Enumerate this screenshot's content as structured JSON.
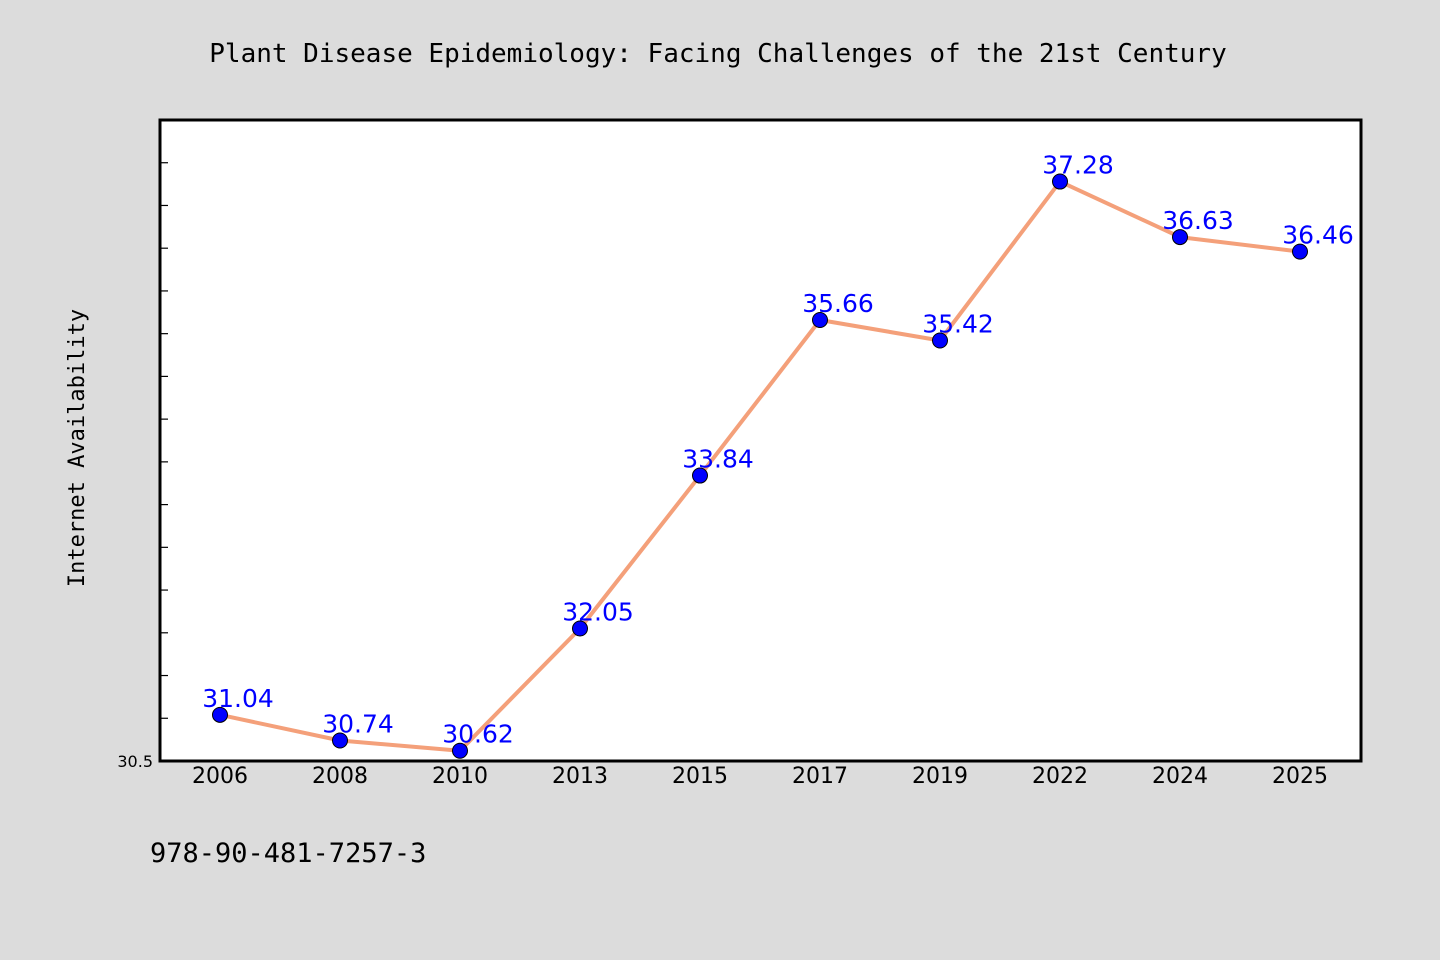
{
  "chart_data": {
    "type": "line",
    "title": "Plant Disease Epidemiology: Facing Challenges of the 21st Century",
    "xlabel": "",
    "ylabel": "Internet Availability",
    "categories": [
      "2006",
      "2008",
      "2010",
      "2013",
      "2015",
      "2017",
      "2019",
      "2022",
      "2024",
      "2025"
    ],
    "series": [
      {
        "values": [
          31.04,
          30.74,
          30.62,
          32.05,
          33.84,
          35.66,
          35.42,
          37.28,
          36.63,
          36.46
        ],
        "line_color": "#f4a07a",
        "marker_color": "#0000ff"
      }
    ],
    "data_labels": [
      "31.04",
      "30.74",
      "30.62",
      "32.05",
      "33.84",
      "35.66",
      "35.42",
      "37.28",
      "36.63",
      "36.46"
    ],
    "ylim": [
      30.5,
      38.0
    ],
    "yticks": [
      30.5
    ],
    "ytick_labels": [
      "30.5"
    ],
    "grid": false,
    "legend": "none"
  },
  "footer": {
    "isbn": "978-90-481-7257-3"
  },
  "colors": {
    "background": "#dcdcdc",
    "plot_background": "#ffffff",
    "line": "#f4a07a",
    "marker": "#0000ff",
    "label": "#0000ff"
  }
}
